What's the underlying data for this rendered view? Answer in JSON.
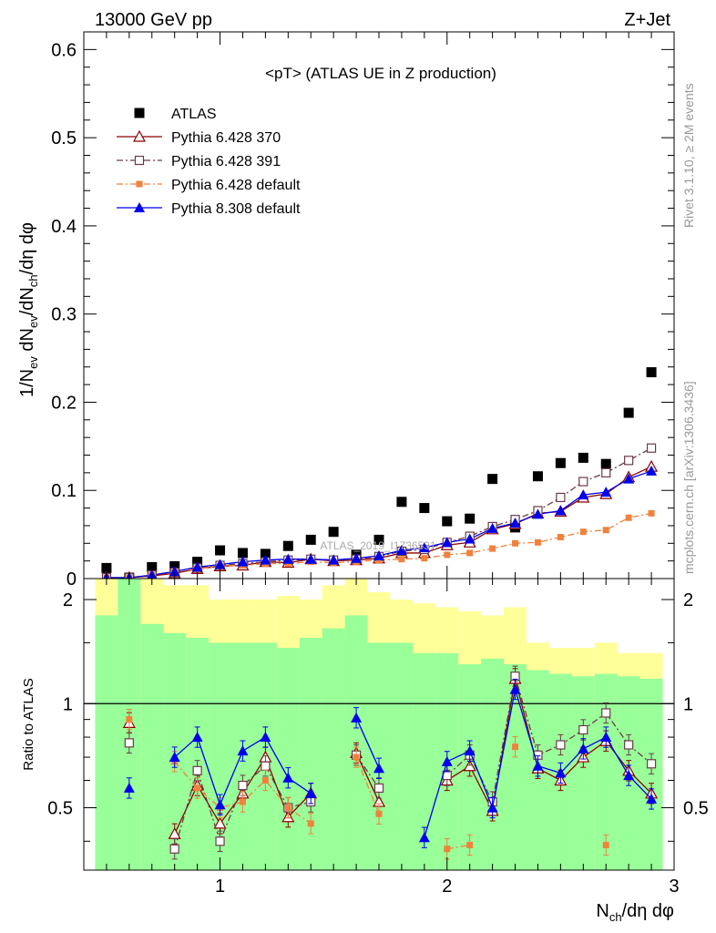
{
  "header": {
    "left": "13000 GeV pp",
    "right": "Z+Jet"
  },
  "side_texts": {
    "rivet": "Rivet 3.1.10, ≥ 2M events",
    "mcplots": "mcplots.cern.ch [arXiv:1306.3436]"
  },
  "watermark": "ATLAS_2019_I1736531",
  "chart_data": [
    {
      "type": "scatter",
      "panel": "main",
      "title": "<pT> (ATLAS UE in Z production)",
      "ylabel": "1/N_ev dN_ev/dN_ch/dη dφ",
      "xlim": [
        0.4,
        3.0
      ],
      "ylim": [
        0,
        0.62
      ],
      "yticks": [
        "0",
        "0.1",
        "0.2",
        "0.3",
        "0.4",
        "0.5",
        "0.6"
      ],
      "x": [
        0.5,
        0.6,
        0.7,
        0.8,
        0.9,
        1.0,
        1.1,
        1.2,
        1.3,
        1.4,
        1.5,
        1.6,
        1.7,
        1.8,
        1.9,
        2.0,
        2.1,
        2.2,
        2.3,
        2.4,
        2.5,
        2.6,
        2.7,
        2.8,
        2.9
      ],
      "legend_position": "top-left",
      "series": [
        {
          "name": "ATLAS",
          "color": "#000000",
          "marker": "square-filled",
          "values": [
            0.012,
            0.001,
            0.013,
            0.014,
            0.019,
            0.032,
            0.029,
            0.028,
            0.037,
            0.044,
            0.053,
            0.027,
            0.044,
            0.087,
            0.08,
            0.065,
            0.068,
            0.113,
            0.058,
            0.116,
            0.131,
            0.137,
            0.13,
            0.188,
            0.234
          ]
        },
        {
          "name": "Pythia 6.428 370",
          "color": "#8b0000",
          "marker": "triangle-open",
          "line": "solid",
          "values": [
            0.001,
            0.001,
            0.003,
            0.006,
            0.011,
            0.014,
            0.015,
            0.019,
            0.018,
            0.022,
            0.02,
            0.021,
            0.023,
            0.029,
            0.029,
            0.038,
            0.041,
            0.056,
            0.062,
            0.074,
            0.076,
            0.092,
            0.096,
            0.115,
            0.127
          ]
        },
        {
          "name": "Pythia 6.428 391",
          "color": "#6b3a4a",
          "marker": "square-open",
          "line": "dashdot",
          "values": [
            0.001,
            0.001,
            0.004,
            0.007,
            0.012,
            0.015,
            0.017,
            0.019,
            0.021,
            0.022,
            0.021,
            0.022,
            0.025,
            0.031,
            0.033,
            0.041,
            0.048,
            0.059,
            0.067,
            0.077,
            0.092,
            0.11,
            0.12,
            0.134,
            0.148
          ]
        },
        {
          "name": "Pythia 6.428 default",
          "color": "#f0823c",
          "marker": "square-filled-small",
          "line": "dashdot",
          "values": [
            0.001,
            0.001,
            0.004,
            0.008,
            0.011,
            0.014,
            0.015,
            0.017,
            0.017,
            0.019,
            0.018,
            0.019,
            0.021,
            0.022,
            0.023,
            0.027,
            0.029,
            0.034,
            0.04,
            0.041,
            0.047,
            0.053,
            0.055,
            0.069,
            0.074
          ]
        },
        {
          "name": "Pythia 8.308 default",
          "color": "#0000ee",
          "marker": "triangle-filled",
          "line": "solid",
          "values": [
            0.001,
            0.001,
            0.004,
            0.008,
            0.013,
            0.016,
            0.019,
            0.021,
            0.022,
            0.022,
            0.021,
            0.023,
            0.026,
            0.032,
            0.035,
            0.041,
            0.045,
            0.057,
            0.063,
            0.073,
            0.077,
            0.095,
            0.098,
            0.113,
            0.122
          ]
        }
      ]
    },
    {
      "type": "line",
      "panel": "ratio",
      "ylabel": "Ratio to ATLAS",
      "xlabel": "N_ch/dη dφ",
      "xlim": [
        0.4,
        3.0
      ],
      "ylim": [
        0.33,
        2.3
      ],
      "yticks": [
        "0.5",
        "1",
        "2"
      ],
      "xticks": [
        "1",
        "2",
        "3"
      ],
      "reference": 1,
      "x": [
        0.5,
        0.6,
        0.7,
        0.8,
        0.9,
        1.0,
        1.1,
        1.2,
        1.3,
        1.4,
        1.5,
        1.6,
        1.7,
        1.8,
        1.9,
        2.0,
        2.1,
        2.2,
        2.3,
        2.4,
        2.5,
        2.6,
        2.7,
        2.8,
        2.9
      ],
      "band_edges": [
        0.45,
        0.55,
        0.65,
        0.75,
        0.85,
        0.95,
        1.05,
        1.15,
        1.25,
        1.35,
        1.45,
        1.55,
        1.65,
        1.75,
        1.85,
        1.95,
        2.05,
        2.15,
        2.25,
        2.35,
        2.45,
        2.55,
        2.65,
        2.75,
        2.85,
        2.95
      ],
      "band_stat": {
        "color": "#99ff99",
        "lo": [
          0.33,
          0.33,
          0.33,
          0.33,
          0.33,
          0.33,
          0.33,
          0.33,
          0.33,
          0.33,
          0.33,
          0.33,
          0.33,
          0.33,
          0.33,
          0.33,
          0.33,
          0.33,
          0.33,
          0.33,
          0.33,
          0.33,
          0.33,
          0.33,
          0.33
        ],
        "hi": [
          1.8,
          2.3,
          1.7,
          1.6,
          1.55,
          1.5,
          1.5,
          1.5,
          1.45,
          1.55,
          1.65,
          1.8,
          1.5,
          1.5,
          1.4,
          1.4,
          1.3,
          1.35,
          1.3,
          1.25,
          1.22,
          1.2,
          1.22,
          1.2,
          1.18
        ]
      },
      "band_total": {
        "color": "#ffff99",
        "lo": [
          0.33,
          0.33,
          0.33,
          0.33,
          0.33,
          0.33,
          0.33,
          0.33,
          0.33,
          0.33,
          0.33,
          0.33,
          0.33,
          0.33,
          0.33,
          0.33,
          0.33,
          0.33,
          0.33,
          0.33,
          0.33,
          0.33,
          0.33,
          0.33,
          0.33
        ],
        "hi": [
          2.3,
          2.3,
          2.3,
          2.2,
          2.2,
          2.0,
          2.0,
          2.0,
          2.05,
          2.0,
          2.2,
          2.3,
          2.1,
          2.0,
          1.95,
          1.9,
          1.85,
          1.8,
          1.9,
          1.5,
          1.45,
          1.45,
          1.5,
          1.4,
          1.4
        ]
      },
      "series": [
        {
          "name": "Pythia 6.428 370",
          "color": "#8b0000",
          "marker": "triangle-open",
          "line": "solid",
          "values": [
            null,
            0.88,
            null,
            0.42,
            0.58,
            0.45,
            0.55,
            0.7,
            0.47,
            0.55,
            null,
            0.72,
            0.52,
            null,
            null,
            0.6,
            0.66,
            0.49,
            1.18,
            0.65,
            0.6,
            0.7,
            0.78,
            0.64,
            0.55
          ]
        },
        {
          "name": "Pythia 6.428 391",
          "color": "#6b3a4a",
          "marker": "square-open",
          "line": "dashdot",
          "values": [
            null,
            0.77,
            null,
            0.38,
            0.64,
            0.4,
            0.58,
            0.66,
            0.5,
            0.52,
            null,
            0.71,
            0.57,
            null,
            null,
            0.62,
            0.71,
            0.52,
            1.2,
            0.71,
            0.76,
            0.84,
            0.94,
            0.76,
            0.67
          ]
        },
        {
          "name": "Pythia 6.428 default",
          "color": "#f0823c",
          "marker": "square-filled-small",
          "line": "dashdot",
          "values": [
            null,
            0.9,
            null,
            0.68,
            0.57,
            0.5,
            0.52,
            0.6,
            0.5,
            0.45,
            null,
            0.7,
            0.48,
            null,
            null,
            0.38,
            0.39,
            null,
            0.75,
            null,
            null,
            null,
            0.39,
            null,
            null
          ]
        },
        {
          "name": "Pythia 8.308 default",
          "color": "#0000ee",
          "marker": "triangle-filled",
          "line": "solid",
          "values": [
            null,
            0.57,
            null,
            0.7,
            0.8,
            0.51,
            0.73,
            0.8,
            0.61,
            0.55,
            null,
            0.91,
            0.65,
            null,
            0.41,
            0.68,
            0.73,
            0.5,
            1.1,
            0.66,
            0.63,
            0.74,
            0.8,
            0.62,
            0.53
          ]
        }
      ]
    }
  ]
}
